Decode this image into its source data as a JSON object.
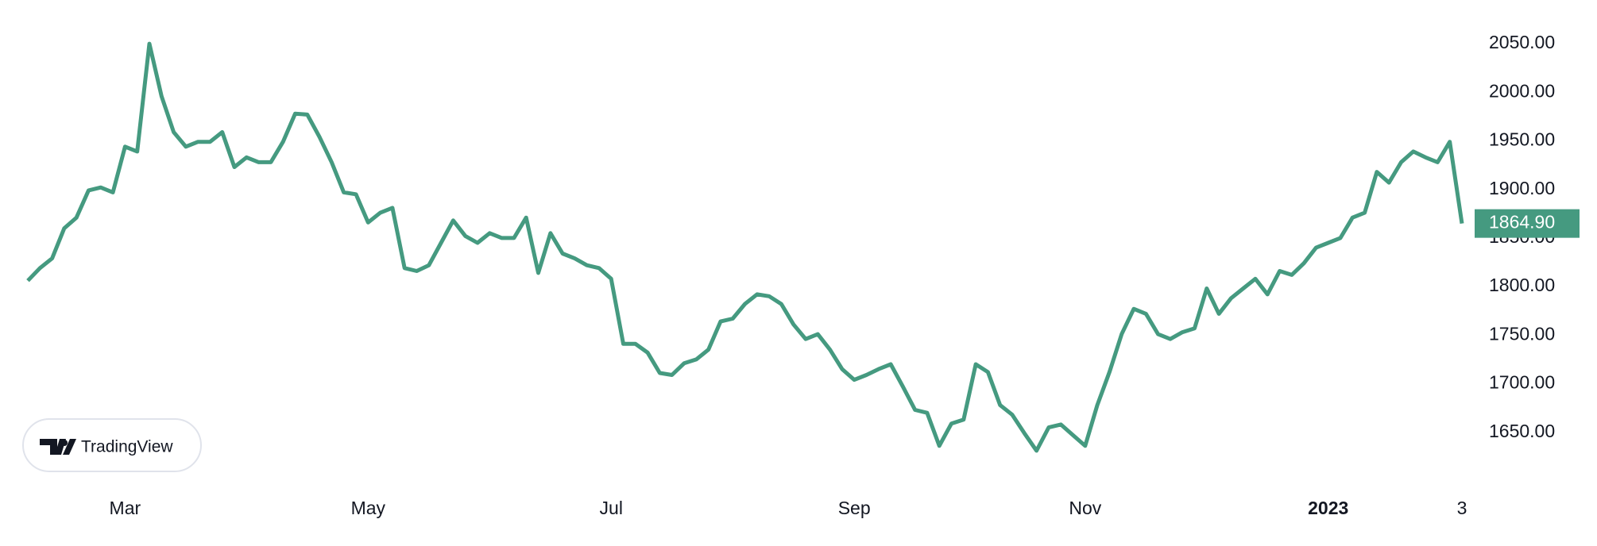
{
  "chart_data": {
    "type": "line",
    "watermark": "TradingView",
    "categories": [
      null,
      null,
      null,
      null,
      null,
      null,
      null,
      null,
      "Mar",
      null,
      null,
      null,
      null,
      null,
      null,
      null,
      null,
      null,
      null,
      null,
      null,
      null,
      null,
      null,
      null,
      null,
      null,
      null,
      "May",
      null,
      null,
      null,
      null,
      null,
      null,
      null,
      null,
      null,
      null,
      null,
      null,
      null,
      null,
      null,
      null,
      null,
      null,
      null,
      "Jul",
      null,
      null,
      null,
      null,
      null,
      null,
      null,
      null,
      null,
      null,
      null,
      null,
      null,
      null,
      null,
      null,
      null,
      null,
      null,
      "Sep",
      null,
      null,
      null,
      null,
      null,
      null,
      null,
      null,
      null,
      null,
      null,
      null,
      null,
      null,
      null,
      null,
      null,
      null,
      "Nov",
      null,
      null,
      null,
      null,
      null,
      null,
      null,
      null,
      null,
      null,
      null,
      null,
      null,
      null,
      null,
      null,
      null,
      null,
      null,
      "2023",
      null,
      null,
      null,
      null,
      null,
      null,
      null,
      null,
      null,
      null,
      "3"
    ],
    "series": [
      {
        "color": "#459a80",
        "values": [
          1806,
          1819,
          1829,
          1860,
          1871,
          1899,
          1902,
          1897,
          1944,
          1939,
          2050,
          1996,
          1959,
          1944,
          1949,
          1949,
          1959,
          1923,
          1933,
          1928,
          1928,
          1949,
          1978,
          1977,
          1954,
          1928,
          1897,
          1895,
          1866,
          1876,
          1881,
          1819,
          1816,
          1822,
          1845,
          1868,
          1852,
          1845,
          1855,
          1850,
          1850,
          1871,
          1814,
          1855,
          1834,
          1829,
          1822,
          1819,
          1808,
          1741,
          1741,
          1732,
          1711,
          1709,
          1721,
          1725,
          1735,
          1764,
          1767,
          1782,
          1792,
          1790,
          1782,
          1761,
          1746,
          1751,
          1735,
          1715,
          1704,
          1709,
          1715,
          1720,
          1697,
          1673,
          1670,
          1636,
          1659,
          1663,
          1720,
          1712,
          1678,
          1668,
          1649,
          1631,
          1655,
          1658,
          1647,
          1636,
          1678,
          1712,
          1751,
          1777,
          1772,
          1751,
          1746,
          1753,
          1757,
          1798,
          1772,
          1788,
          1798,
          1808,
          1792,
          1816,
          1812,
          1824,
          1840,
          1845,
          1850,
          1871,
          1876,
          1918,
          1907,
          1928,
          1939,
          1933,
          1928,
          1949,
          1864.9
        ],
        "value_labels": [
          null,
          null,
          null,
          null,
          null,
          null,
          null,
          null,
          null,
          null,
          null,
          null,
          null,
          null,
          null,
          null,
          null,
          null,
          null,
          null,
          null,
          null,
          null,
          null,
          null,
          null,
          null,
          null,
          null,
          null,
          null,
          null,
          null,
          null,
          null,
          null,
          null,
          null,
          null,
          null,
          null,
          null,
          null,
          null,
          null,
          null,
          null,
          null,
          null,
          null,
          null,
          null,
          null,
          null,
          null,
          null,
          null,
          null,
          null,
          null,
          null,
          null,
          null,
          null,
          null,
          null,
          null,
          null,
          null,
          null,
          null,
          null,
          null,
          null,
          null,
          null,
          null,
          null,
          null,
          null,
          null,
          null,
          null,
          null,
          null,
          null,
          null,
          null,
          null,
          null,
          null,
          null,
          null,
          null,
          null,
          null,
          null,
          null,
          null,
          null,
          null,
          null,
          null,
          null,
          null,
          null,
          null,
          null,
          null,
          null,
          null,
          null,
          null,
          null,
          null,
          null,
          null,
          null,
          "1864.90"
        ]
      }
    ],
    "ylim": [
      1595,
      2095
    ],
    "yticks": [
      {
        "value": 1650,
        "label": "1650.00"
      },
      {
        "value": 1700,
        "label": "1700.00"
      },
      {
        "value": 1750,
        "label": "1750.00"
      },
      {
        "value": 1800,
        "label": "1800.00"
      },
      {
        "value": 1850,
        "label": "1850.00"
      },
      {
        "value": 1900,
        "label": "1900.00"
      },
      {
        "value": 1950,
        "label": "1950.00"
      },
      {
        "value": 2000,
        "label": "2000.00"
      },
      {
        "value": 2050,
        "label": "2050.00"
      }
    ],
    "bold_categories": [
      "2023"
    ]
  }
}
